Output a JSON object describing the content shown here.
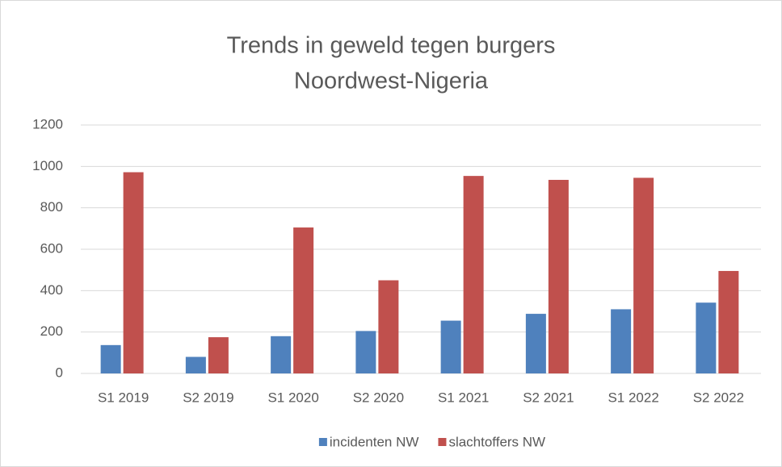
{
  "chart_data": {
    "type": "bar",
    "title": [
      "Trends in geweld tegen burgers",
      "Noordwest-Nigeria"
    ],
    "categories": [
      "S1 2019",
      "S2 2019",
      "S1 2020",
      "S2 2020",
      "S1 2021",
      "S2 2021",
      "S1 2022",
      "S2 2022"
    ],
    "series": [
      {
        "name": "incidenten NW",
        "color": "#4f81bd",
        "values": [
          137,
          80,
          180,
          205,
          255,
          288,
          310,
          342
        ]
      },
      {
        "name": "slachtoffers NW",
        "color": "#c0504d",
        "values": [
          972,
          175,
          705,
          450,
          954,
          935,
          945,
          495
        ]
      }
    ],
    "ylim": [
      0,
      1200
    ],
    "yticks": [
      0,
      200,
      400,
      600,
      800,
      1000,
      1200
    ],
    "grid": true,
    "legend": "bottom"
  }
}
